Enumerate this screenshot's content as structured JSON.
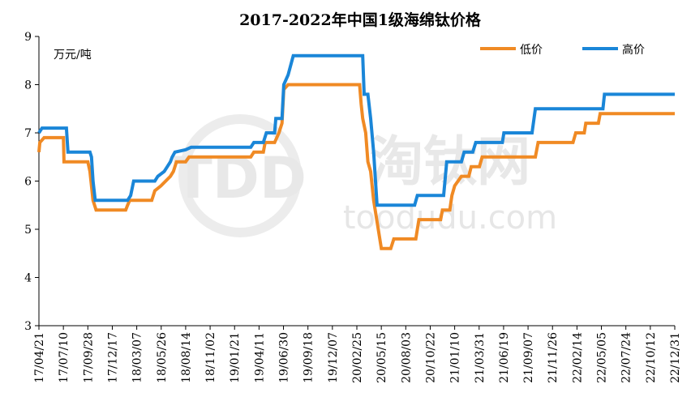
{
  "chart_data": {
    "type": "line",
    "title": "2017-2022年中国1级海绵钛价格",
    "unit_label": "万元/吨",
    "ylim": [
      3,
      9
    ],
    "yticks": [
      3,
      4,
      5,
      6,
      7,
      8,
      9
    ],
    "xlim": [
      "2017-04-21",
      "2022-12-31"
    ],
    "x_tick_labels": [
      "17/04/21",
      "17/07/10",
      "17/09/28",
      "17/12/17",
      "18/03/07",
      "18/05/26",
      "18/08/14",
      "18/11/02",
      "19/01/21",
      "19/04/11",
      "19/06/30",
      "19/09/18",
      "19/12/07",
      "20/02/25",
      "20/05/15",
      "20/08/03",
      "20/10/22",
      "21/01/10",
      "21/03/31",
      "21/06/19",
      "21/09/07",
      "21/11/26",
      "22/02/14",
      "22/05/05",
      "22/07/24",
      "22/10/12",
      "22/12/31"
    ],
    "legend_position": "top-right",
    "grid": false,
    "watermark": {
      "logo": "TDD",
      "name": "淘钛网",
      "url": "toodudu.com"
    },
    "series": [
      {
        "name": "低价",
        "color": "#f08a24",
        "points": [
          [
            "2017-04-21",
            6.6
          ],
          [
            "2017-04-24",
            6.8
          ],
          [
            "2017-05-08",
            6.9
          ],
          [
            "2017-07-10",
            6.9
          ],
          [
            "2017-07-12",
            6.4
          ],
          [
            "2017-09-28",
            6.4
          ],
          [
            "2017-10-05",
            6.2
          ],
          [
            "2017-10-15",
            5.6
          ],
          [
            "2017-10-25",
            5.4
          ],
          [
            "2018-01-30",
            5.4
          ],
          [
            "2018-02-05",
            5.5
          ],
          [
            "2018-02-12",
            5.6
          ],
          [
            "2018-04-25",
            5.6
          ],
          [
            "2018-05-05",
            5.8
          ],
          [
            "2018-05-25",
            5.9
          ],
          [
            "2018-06-25",
            6.1
          ],
          [
            "2018-07-05",
            6.2
          ],
          [
            "2018-07-15",
            6.4
          ],
          [
            "2018-08-14",
            6.4
          ],
          [
            "2018-08-25",
            6.5
          ],
          [
            "2019-03-15",
            6.5
          ],
          [
            "2019-03-25",
            6.6
          ],
          [
            "2019-04-25",
            6.6
          ],
          [
            "2019-05-01",
            6.8
          ],
          [
            "2019-06-01",
            6.8
          ],
          [
            "2019-06-15",
            7.0
          ],
          [
            "2019-06-25",
            7.2
          ],
          [
            "2019-07-01",
            7.9
          ],
          [
            "2019-07-15",
            8.0
          ],
          [
            "2020-03-05",
            8.0
          ],
          [
            "2020-03-10",
            7.6
          ],
          [
            "2020-03-15",
            7.3
          ],
          [
            "2020-03-25",
            7.0
          ],
          [
            "2020-04-01",
            6.4
          ],
          [
            "2020-04-10",
            6.2
          ],
          [
            "2020-04-20",
            5.6
          ],
          [
            "2020-04-30",
            5.2
          ],
          [
            "2020-05-15",
            4.6
          ],
          [
            "2020-06-15",
            4.6
          ],
          [
            "2020-06-25",
            4.8
          ],
          [
            "2020-09-05",
            4.8
          ],
          [
            "2020-09-15",
            5.2
          ],
          [
            "2020-11-25",
            5.2
          ],
          [
            "2020-12-01",
            5.4
          ],
          [
            "2020-12-25",
            5.4
          ],
          [
            "2021-01-01",
            5.7
          ],
          [
            "2021-01-10",
            5.9
          ],
          [
            "2021-02-01",
            6.1
          ],
          [
            "2021-02-25",
            6.1
          ],
          [
            "2021-03-05",
            6.3
          ],
          [
            "2021-04-01",
            6.3
          ],
          [
            "2021-04-10",
            6.5
          ],
          [
            "2021-10-01",
            6.5
          ],
          [
            "2021-10-10",
            6.8
          ],
          [
            "2022-02-01",
            6.8
          ],
          [
            "2022-02-10",
            7.0
          ],
          [
            "2022-03-10",
            7.0
          ],
          [
            "2022-03-15",
            7.2
          ],
          [
            "2022-04-25",
            7.2
          ],
          [
            "2022-05-01",
            7.4
          ],
          [
            "2022-12-31",
            7.4
          ]
        ]
      },
      {
        "name": "高价",
        "color": "#1a86d8",
        "points": [
          [
            "2017-04-21",
            7.0
          ],
          [
            "2017-05-01",
            7.1
          ],
          [
            "2017-07-20",
            7.1
          ],
          [
            "2017-07-25",
            6.6
          ],
          [
            "2017-10-05",
            6.6
          ],
          [
            "2017-10-10",
            6.5
          ],
          [
            "2017-10-15",
            6.0
          ],
          [
            "2017-10-22",
            5.6
          ],
          [
            "2018-02-05",
            5.6
          ],
          [
            "2018-02-15",
            5.7
          ],
          [
            "2018-02-25",
            6.0
          ],
          [
            "2018-05-05",
            6.0
          ],
          [
            "2018-05-15",
            6.1
          ],
          [
            "2018-06-05",
            6.2
          ],
          [
            "2018-06-15",
            6.3
          ],
          [
            "2018-06-25",
            6.4
          ],
          [
            "2018-07-01",
            6.5
          ],
          [
            "2018-07-10",
            6.6
          ],
          [
            "2018-08-14",
            6.65
          ],
          [
            "2018-09-01",
            6.7
          ],
          [
            "2019-03-15",
            6.7
          ],
          [
            "2019-03-25",
            6.8
          ],
          [
            "2019-04-25",
            6.8
          ],
          [
            "2019-05-05",
            7.0
          ],
          [
            "2019-06-01",
            7.0
          ],
          [
            "2019-06-05",
            7.3
          ],
          [
            "2019-06-25",
            7.3
          ],
          [
            "2019-07-01",
            8.0
          ],
          [
            "2019-07-15",
            8.2
          ],
          [
            "2019-08-01",
            8.6
          ],
          [
            "2020-03-15",
            8.6
          ],
          [
            "2020-03-20",
            7.8
          ],
          [
            "2020-04-01",
            7.8
          ],
          [
            "2020-04-10",
            7.3
          ],
          [
            "2020-04-20",
            6.6
          ],
          [
            "2020-05-01",
            5.5
          ],
          [
            "2020-09-01",
            5.5
          ],
          [
            "2020-09-10",
            5.7
          ],
          [
            "2020-12-05",
            5.7
          ],
          [
            "2020-12-15",
            6.4
          ],
          [
            "2021-02-01",
            6.4
          ],
          [
            "2021-02-10",
            6.6
          ],
          [
            "2021-03-10",
            6.6
          ],
          [
            "2021-03-20",
            6.8
          ],
          [
            "2021-06-15",
            6.8
          ],
          [
            "2021-06-20",
            7.0
          ],
          [
            "2021-09-20",
            7.0
          ],
          [
            "2021-10-01",
            7.5
          ],
          [
            "2022-05-10",
            7.5
          ],
          [
            "2022-05-15",
            7.8
          ],
          [
            "2022-12-31",
            7.8
          ]
        ]
      }
    ]
  }
}
